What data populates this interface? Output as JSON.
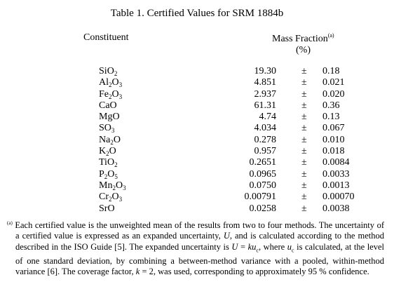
{
  "title": "Table 1. Certified Values for SRM 1884b",
  "headers": {
    "constituent": "Constituent",
    "mass_fraction": "Mass Fraction",
    "mass_fraction_note": "(a)",
    "unit": "(%)"
  },
  "rows": [
    {
      "base": [
        "Si",
        "O"
      ],
      "subs": [
        "",
        "2"
      ],
      "value": "19.30",
      "pm": "±",
      "unc": "0.18"
    },
    {
      "base": [
        "Al",
        "O"
      ],
      "subs": [
        "2",
        "3"
      ],
      "value": "4.851",
      "pm": "±",
      "unc": "0.021"
    },
    {
      "base": [
        "Fe",
        "O"
      ],
      "subs": [
        "2",
        "3"
      ],
      "value": "2.937",
      "pm": "±",
      "unc": "0.020"
    },
    {
      "base": [
        "CaO",
        ""
      ],
      "subs": [
        "",
        ""
      ],
      "value": "61.31",
      "pm": "±",
      "unc": "0.36"
    },
    {
      "base": [
        "MgO",
        ""
      ],
      "subs": [
        "",
        ""
      ],
      "value": "4.74",
      "pm": "±",
      "unc": "0.13"
    },
    {
      "base": [
        "SO",
        ""
      ],
      "subs": [
        "3",
        ""
      ],
      "value": "4.034",
      "pm": "±",
      "unc": "0.067"
    },
    {
      "base": [
        "Na",
        "O"
      ],
      "subs": [
        "2",
        ""
      ],
      "value": "0.278",
      "pm": "±",
      "unc": "0.010"
    },
    {
      "base": [
        "K",
        "O"
      ],
      "subs": [
        "2",
        ""
      ],
      "value": "0.957",
      "pm": "±",
      "unc": "0.018"
    },
    {
      "base": [
        "TiO",
        ""
      ],
      "subs": [
        "2",
        ""
      ],
      "value": "0.2651",
      "pm": "±",
      "unc": "0.0084"
    },
    {
      "base": [
        "P",
        "O"
      ],
      "subs": [
        "2",
        "5"
      ],
      "value": "0.0965",
      "pm": "±",
      "unc": "0.0033"
    },
    {
      "base": [
        "Mn",
        "O"
      ],
      "subs": [
        "2",
        "3"
      ],
      "value": "0.0750",
      "pm": "±",
      "unc": "0.0013"
    },
    {
      "base": [
        "Cr",
        "O"
      ],
      "subs": [
        "2",
        "3"
      ],
      "value": "0.00791",
      "pm": "±",
      "unc": "0.00070"
    },
    {
      "base": [
        "SrO",
        ""
      ],
      "subs": [
        "",
        ""
      ],
      "value": "0.0258",
      "pm": "±",
      "unc": "0.0038"
    }
  ],
  "footnote": {
    "mark": "(a)",
    "text": "Each certified value is the unweighted mean of the results from two to four methods.  The uncertainty of a certified value is expressed as an expanded uncertainty, U, and is calculated according to the method described in the ISO Guide [5].  The expanded uncertainty is U = kuc, where uc is calculated, at the level of one standard deviation, by combining a between-method variance with a pooled, within-method variance [6].  The coverage factor, k = 2, was used, corresponding to approximately 95 % confidence."
  }
}
